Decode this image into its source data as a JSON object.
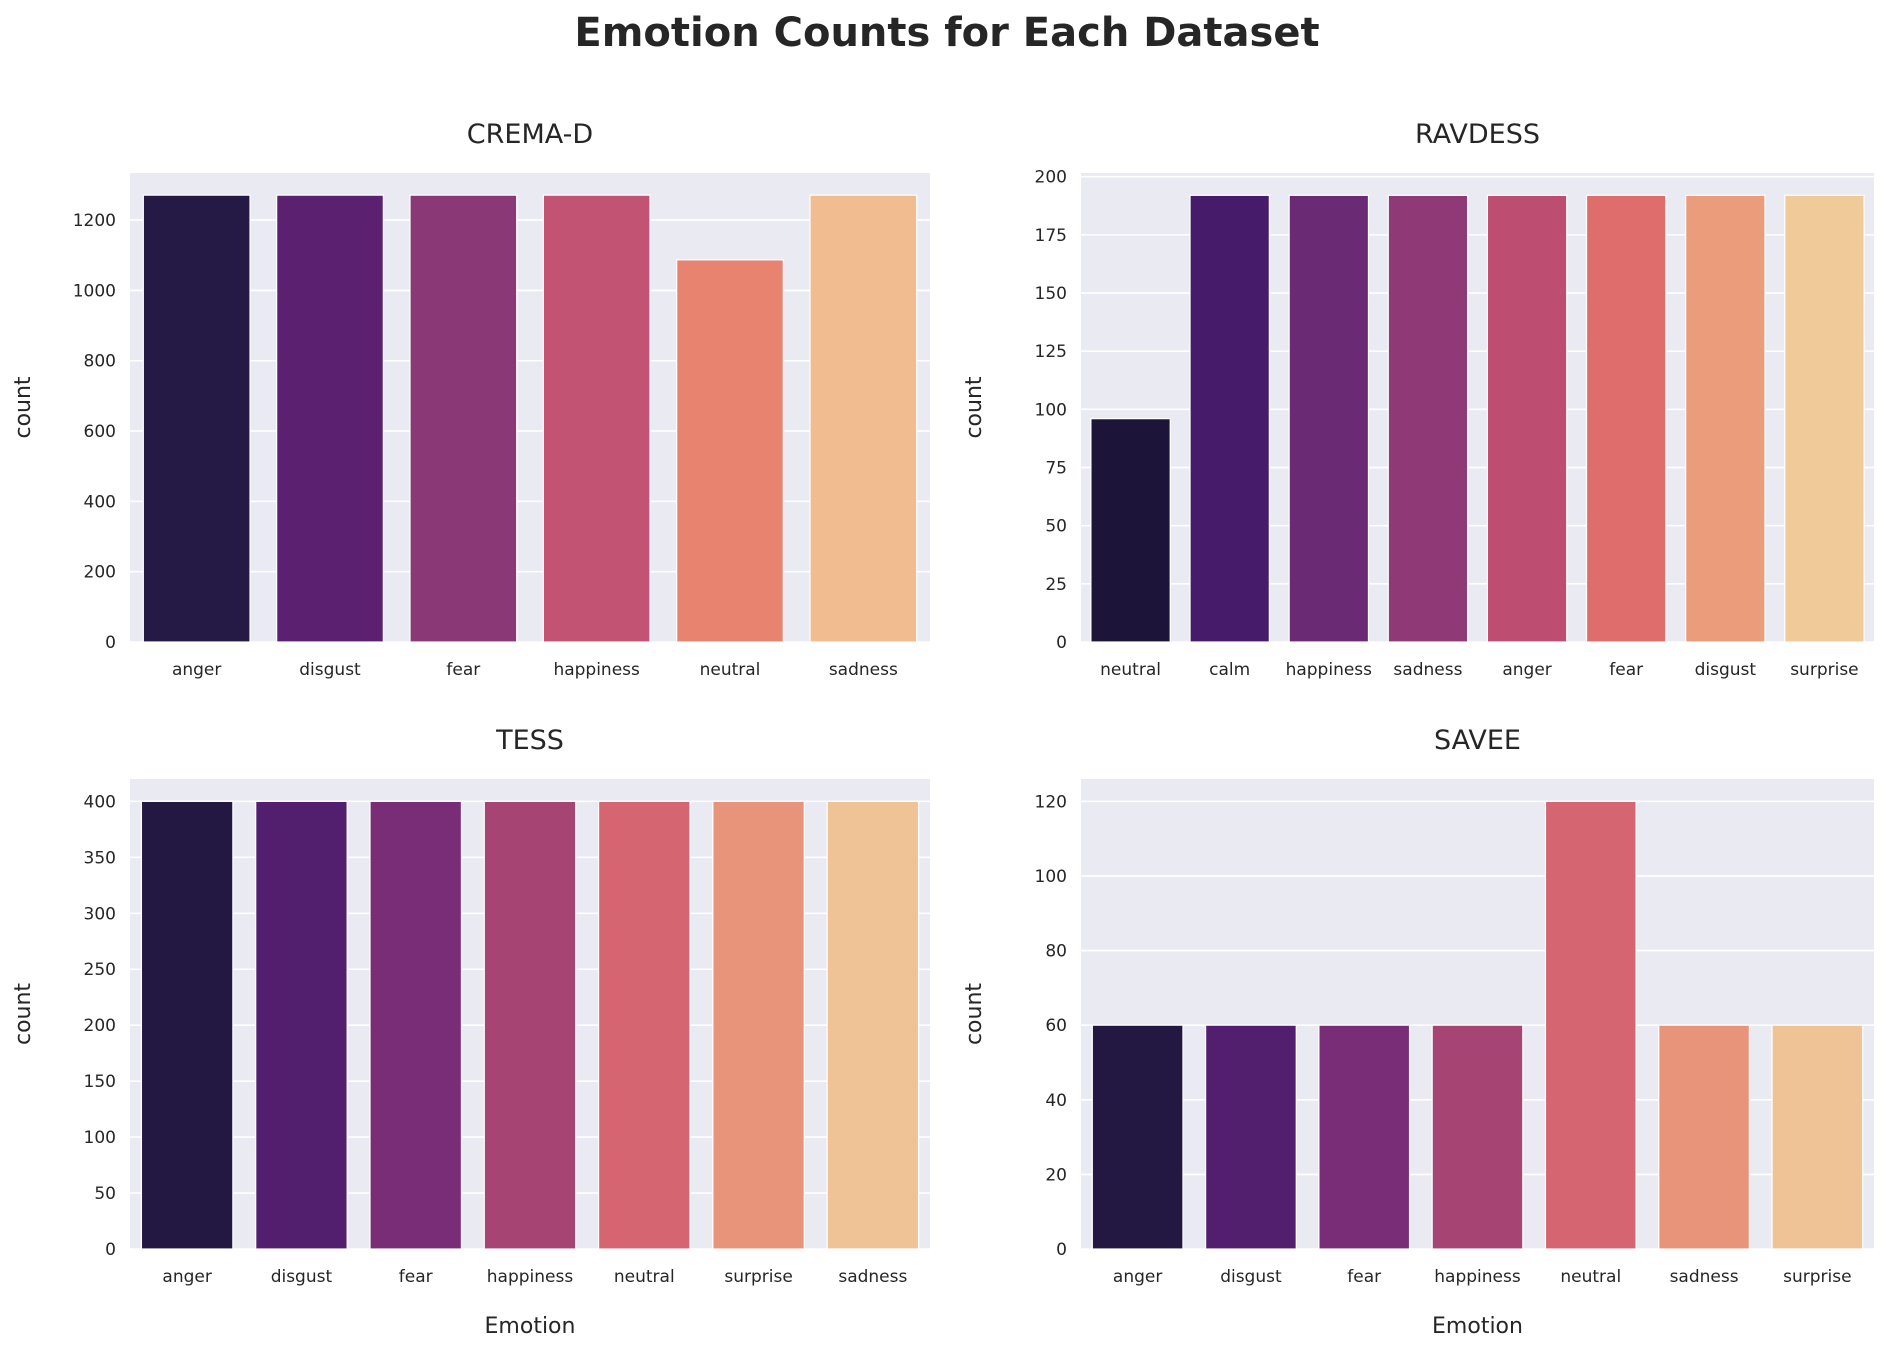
{
  "figure": {
    "suptitle": "Emotion Counts for Each Dataset",
    "style": {
      "panel_bg": "#eaeaf2",
      "grid": "#ffffff",
      "text": "#262626"
    }
  },
  "chart_data": [
    {
      "type": "bar",
      "title": "CREMA-D",
      "ylabel": "count",
      "xlabel": "",
      "categories": [
        "anger",
        "disgust",
        "fear",
        "happiness",
        "neutral",
        "sadness"
      ],
      "values": [
        1271,
        1271,
        1271,
        1271,
        1087,
        1271
      ],
      "colors": [
        "#251a45",
        "#5b2170",
        "#8b3877",
        "#c25373",
        "#e7836f",
        "#f0bc90"
      ],
      "ylim": [
        0,
        1334
      ],
      "yticks": [
        0,
        200,
        400,
        600,
        800,
        1000,
        1200
      ],
      "grid": true
    },
    {
      "type": "bar",
      "title": "RAVDESS",
      "ylabel": "count",
      "xlabel": "",
      "categories": [
        "neutral",
        "calm",
        "happiness",
        "sadness",
        "anger",
        "fear",
        "disgust",
        "surprise"
      ],
      "values": [
        96,
        192,
        192,
        192,
        192,
        192,
        192,
        192
      ],
      "colors": [
        "#1c1439",
        "#461b69",
        "#6b2a74",
        "#8f3a77",
        "#bd4e72",
        "#df6d6c",
        "#eb9d7b",
        "#f1ca99"
      ],
      "ylim": [
        0,
        201.6
      ],
      "yticks": [
        0,
        25,
        50,
        75,
        100,
        125,
        150,
        175,
        200
      ],
      "grid": true
    },
    {
      "type": "bar",
      "title": "TESS",
      "ylabel": "count",
      "xlabel": "Emotion",
      "categories": [
        "anger",
        "disgust",
        "fear",
        "happiness",
        "neutral",
        "surprise",
        "sadness"
      ],
      "values": [
        400,
        400,
        400,
        400,
        400,
        400,
        400
      ],
      "colors": [
        "#221842",
        "#511f6e",
        "#792d77",
        "#a64474",
        "#d46571",
        "#e8947a",
        "#f0c396"
      ],
      "ylim": [
        0,
        420
      ],
      "yticks": [
        0,
        50,
        100,
        150,
        200,
        250,
        300,
        350,
        400
      ],
      "grid": true
    },
    {
      "type": "bar",
      "title": "SAVEE",
      "ylabel": "count",
      "xlabel": "Emotion",
      "categories": [
        "anger",
        "disgust",
        "fear",
        "happiness",
        "neutral",
        "sadness",
        "surprise"
      ],
      "values": [
        60,
        60,
        60,
        60,
        120,
        60,
        60
      ],
      "colors": [
        "#221842",
        "#511f6e",
        "#792d77",
        "#a64474",
        "#d46571",
        "#e8947a",
        "#f0c396"
      ],
      "ylim": [
        0,
        126
      ],
      "yticks": [
        0,
        20,
        40,
        60,
        80,
        100,
        120
      ],
      "grid": true
    }
  ]
}
